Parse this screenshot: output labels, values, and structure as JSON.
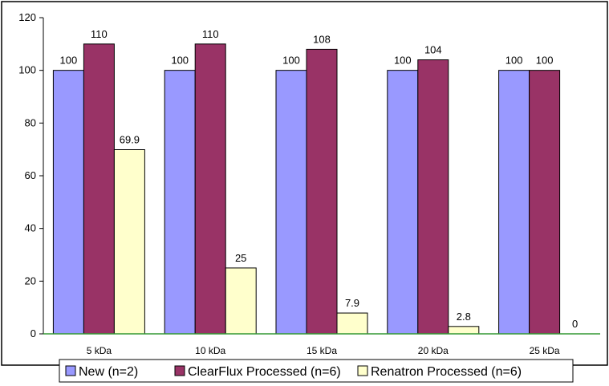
{
  "chart_data": {
    "type": "bar",
    "title": "",
    "xlabel": "",
    "ylabel": "",
    "ylim": [
      0,
      120
    ],
    "yticks": [
      0,
      20,
      40,
      60,
      80,
      100,
      120
    ],
    "grid": false,
    "legend_position": "bottom",
    "categories": [
      "5 kDa",
      "10 kDa",
      "15 kDa",
      "20 kDa",
      "25 kDa"
    ],
    "series": [
      {
        "name": "New (n=2)",
        "color": "#9999ff",
        "values": [
          100,
          100,
          100,
          100,
          100
        ],
        "labels": [
          "100",
          "100",
          "100",
          "100",
          "100"
        ]
      },
      {
        "name": "ClearFlux Processed (n=6)",
        "color": "#993366",
        "values": [
          110,
          110,
          108,
          104,
          100
        ],
        "labels": [
          "110",
          "110",
          "108",
          "104",
          "100"
        ]
      },
      {
        "name": "Renatron Processed (n=6)",
        "color": "#ffffcc",
        "values": [
          69.9,
          25,
          7.9,
          2.8,
          0
        ],
        "labels": [
          "69.9",
          "25",
          "7.9",
          "2.8",
          "0"
        ]
      }
    ],
    "baseline_color": "#339933"
  }
}
